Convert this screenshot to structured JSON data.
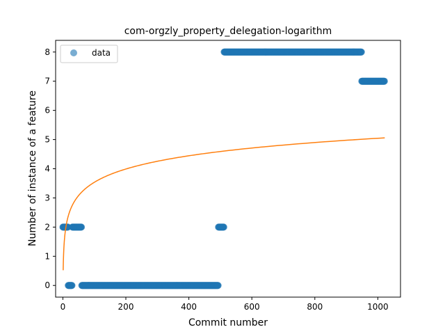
{
  "chart_data": {
    "type": "scatter",
    "title": "com-orgzly_property_delegation-logarithm",
    "xlabel": "Commit number",
    "ylabel": "Number of instance of a feature",
    "xlim": [
      -23,
      1072
    ],
    "ylim": [
      -0.4,
      8.4
    ],
    "xticks": [
      0,
      200,
      400,
      600,
      800,
      1000
    ],
    "yticks": [
      0,
      1,
      2,
      3,
      4,
      5,
      6,
      7,
      8
    ],
    "grid": false,
    "legend_position": "top-left",
    "series": [
      {
        "name": "data",
        "kind": "points",
        "color": "#1f77b4",
        "segments": [
          {
            "x_start": 0,
            "x_end": 17,
            "y": 2
          },
          {
            "x_start": 17,
            "x_end": 30,
            "y": 0
          },
          {
            "x_start": 30,
            "x_end": 60,
            "y": 2
          },
          {
            "x_start": 60,
            "x_end": 494,
            "y": 0
          },
          {
            "x_start": 494,
            "x_end": 512,
            "y": 2
          },
          {
            "x_start": 512,
            "x_end": 949,
            "y": 8
          },
          {
            "x_start": 949,
            "x_end": 1022,
            "y": 7
          }
        ]
      },
      {
        "kind": "curve",
        "color": "#ff7f0e",
        "model": "a + b*ln(x)",
        "a": 0.52,
        "b": 0.655,
        "x_start": 1,
        "x_end": 1022
      }
    ]
  }
}
